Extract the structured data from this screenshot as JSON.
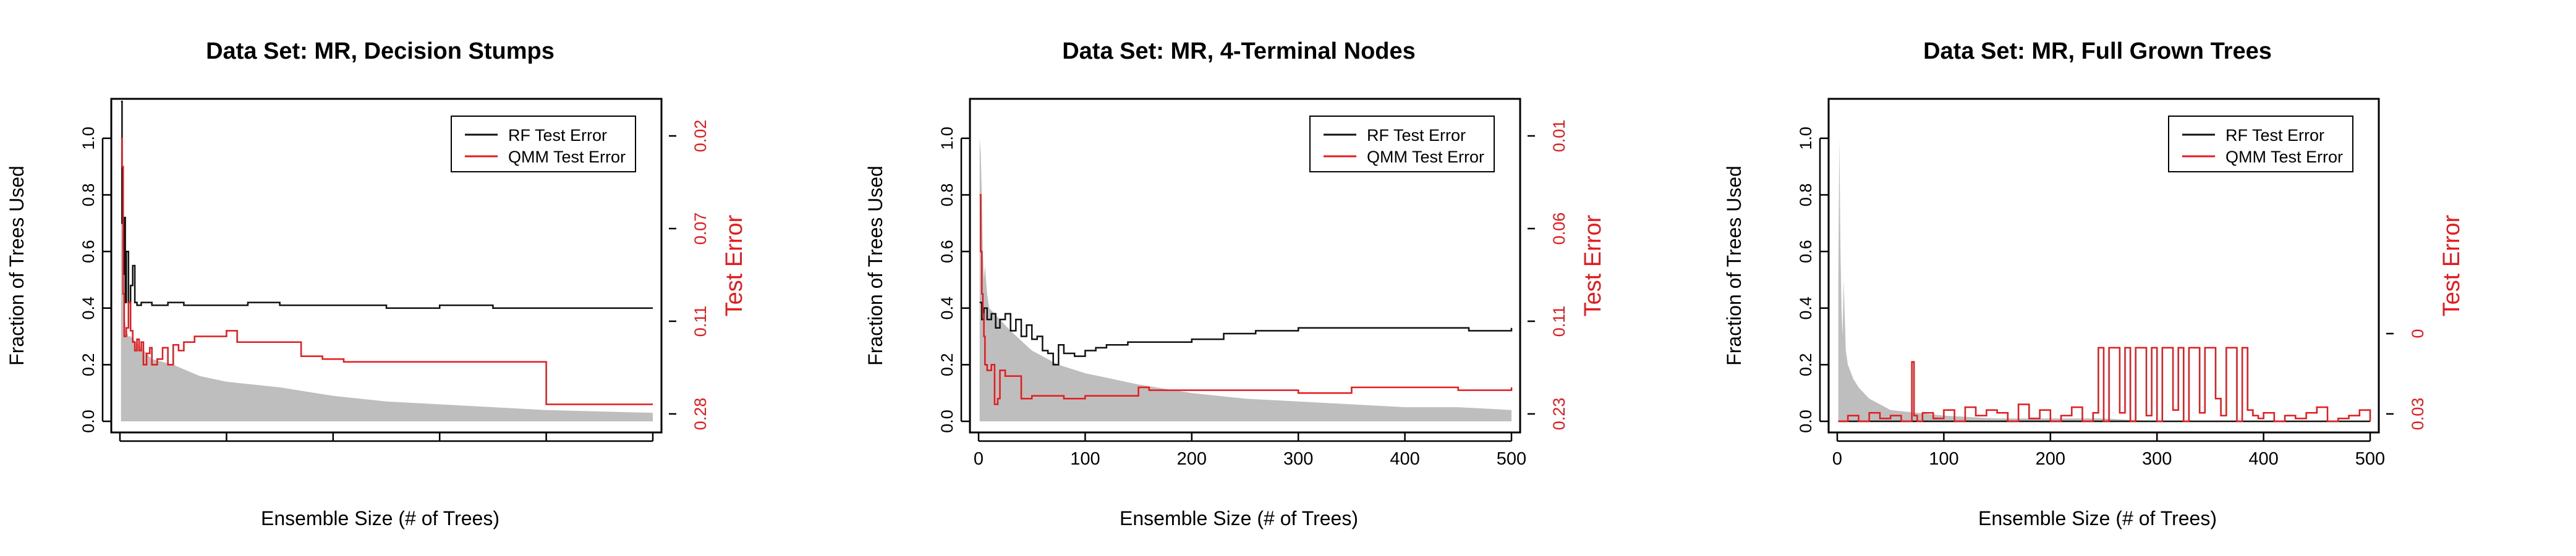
{
  "colors": {
    "rf": "#111111",
    "qmm": "#e41a1c",
    "fraction_fill": "#bebebe",
    "axis": "#000000"
  },
  "chart_data": [
    {
      "type": "line",
      "title": "Data Set: MR, Decision Stumps",
      "xlabel": "Ensemble Size (# of Trees)",
      "ylabel": "Fraction of Trees Used",
      "y2label": "Test Error",
      "x_ticks": [
        "",
        "",
        "",
        "",
        "",
        ""
      ],
      "y_ticks": [
        "0.0",
        "0.2",
        "0.4",
        "0.6",
        "0.8",
        "1.0"
      ],
      "y2_ticks": [
        "0.02",
        "0.07",
        "0.11",
        "0.28"
      ],
      "xlim": [
        0,
        500
      ],
      "ylim": [
        0,
        1.1
      ],
      "legend": {
        "position": "top-right",
        "entries": [
          "RF Test Error",
          "QMM Test Error"
        ]
      },
      "series": [
        {
          "name": "RF Test Error",
          "role": "rf",
          "x": [
            1,
            2,
            3,
            4,
            5,
            6,
            8,
            10,
            12,
            14,
            16,
            20,
            30,
            45,
            60,
            80,
            100,
            120,
            150,
            200,
            250,
            300,
            350,
            400,
            450,
            500
          ],
          "values": [
            1.13,
            0.7,
            0.52,
            0.72,
            0.42,
            0.6,
            0.42,
            0.48,
            0.55,
            0.42,
            0.41,
            0.42,
            0.41,
            0.42,
            0.41,
            0.41,
            0.41,
            0.42,
            0.41,
            0.41,
            0.4,
            0.41,
            0.4,
            0.4,
            0.4,
            0.4
          ]
        },
        {
          "name": "QMM Test Error",
          "role": "qmm",
          "x": [
            1,
            2,
            3,
            4,
            5,
            6,
            8,
            10,
            12,
            14,
            16,
            18,
            20,
            22,
            25,
            28,
            30,
            35,
            40,
            45,
            50,
            55,
            60,
            70,
            80,
            90,
            100,
            110,
            130,
            150,
            170,
            190,
            200,
            210,
            250,
            300,
            350,
            400,
            450,
            500
          ],
          "values": [
            1.0,
            0.9,
            0.45,
            0.3,
            0.3,
            0.33,
            0.42,
            0.32,
            0.28,
            0.25,
            0.29,
            0.25,
            0.28,
            0.2,
            0.24,
            0.26,
            0.2,
            0.22,
            0.26,
            0.2,
            0.27,
            0.25,
            0.28,
            0.3,
            0.3,
            0.3,
            0.32,
            0.28,
            0.28,
            0.28,
            0.23,
            0.22,
            0.22,
            0.21,
            0.21,
            0.21,
            0.21,
            0.06,
            0.06,
            0.06
          ]
        }
      ],
      "fraction_used": {
        "x": [
          1,
          2,
          3,
          4,
          5,
          6,
          8,
          10,
          15,
          20,
          30,
          50,
          75,
          100,
          150,
          200,
          250,
          300,
          350,
          400,
          450,
          500
        ],
        "values": [
          1.0,
          0.7,
          0.5,
          0.4,
          0.35,
          0.32,
          0.3,
          0.3,
          0.28,
          0.26,
          0.22,
          0.2,
          0.16,
          0.14,
          0.12,
          0.09,
          0.07,
          0.06,
          0.05,
          0.04,
          0.035,
          0.03
        ]
      }
    },
    {
      "type": "line",
      "title": "Data Set: MR, 4-Terminal Nodes",
      "xlabel": "Ensemble Size (# of Trees)",
      "ylabel": "Fraction of Trees Used",
      "y2label": "Test Error",
      "x_ticks": [
        "0",
        "100",
        "200",
        "300",
        "400",
        "500"
      ],
      "y_ticks": [
        "0.0",
        "0.2",
        "0.4",
        "0.6",
        "0.8",
        "1.0"
      ],
      "y2_ticks": [
        "0.01",
        "0.06",
        "0.11",
        "0.23"
      ],
      "xlim": [
        0,
        500
      ],
      "ylim": [
        0,
        1.1
      ],
      "legend": {
        "position": "top-right",
        "entries": [
          "RF Test Error",
          "QMM Test Error"
        ]
      },
      "series": [
        {
          "name": "RF Test Error",
          "role": "rf",
          "x": [
            1,
            3,
            5,
            8,
            12,
            16,
            20,
            25,
            30,
            35,
            40,
            45,
            50,
            55,
            60,
            65,
            70,
            75,
            80,
            90,
            100,
            110,
            120,
            140,
            160,
            180,
            200,
            230,
            260,
            300,
            340,
            380,
            420,
            460,
            500
          ],
          "values": [
            0.42,
            0.36,
            0.4,
            0.36,
            0.38,
            0.33,
            0.36,
            0.38,
            0.32,
            0.36,
            0.3,
            0.34,
            0.29,
            0.3,
            0.25,
            0.24,
            0.2,
            0.27,
            0.24,
            0.23,
            0.25,
            0.26,
            0.27,
            0.28,
            0.28,
            0.28,
            0.29,
            0.31,
            0.32,
            0.33,
            0.33,
            0.33,
            0.33,
            0.32,
            0.33
          ]
        },
        {
          "name": "QMM Test Error",
          "role": "qmm",
          "x": [
            1,
            2,
            3,
            4,
            5,
            6,
            8,
            10,
            12,
            15,
            18,
            20,
            25,
            30,
            40,
            50,
            60,
            80,
            100,
            120,
            150,
            160,
            200,
            250,
            300,
            350,
            400,
            450,
            500
          ],
          "values": [
            0.8,
            0.6,
            0.45,
            0.38,
            0.3,
            0.2,
            0.18,
            0.18,
            0.2,
            0.06,
            0.08,
            0.18,
            0.16,
            0.16,
            0.08,
            0.09,
            0.09,
            0.08,
            0.09,
            0.09,
            0.12,
            0.11,
            0.11,
            0.11,
            0.1,
            0.12,
            0.12,
            0.11,
            0.12
          ]
        }
      ],
      "fraction_used": {
        "x": [
          1,
          2,
          3,
          4,
          5,
          6,
          8,
          10,
          15,
          20,
          30,
          50,
          75,
          100,
          150,
          200,
          250,
          300,
          350,
          400,
          450,
          500
        ],
        "values": [
          1.0,
          0.95,
          0.8,
          0.6,
          0.5,
          0.55,
          0.45,
          0.4,
          0.38,
          0.36,
          0.32,
          0.25,
          0.2,
          0.17,
          0.13,
          0.1,
          0.08,
          0.07,
          0.06,
          0.05,
          0.05,
          0.04
        ]
      }
    },
    {
      "type": "line",
      "title": "Data Set: MR, Full Grown Trees",
      "xlabel": "Ensemble Size (# of Trees)",
      "ylabel": "Fraction of Trees Used",
      "y2label": "Test Error",
      "x_ticks": [
        "0",
        "100",
        "200",
        "300",
        "400",
        "500"
      ],
      "y_ticks": [
        "0.0",
        "0.2",
        "0.4",
        "0.6",
        "0.8",
        "1.0"
      ],
      "y2_ticks": [
        "0",
        "0.03"
      ],
      "xlim": [
        0,
        500
      ],
      "ylim": [
        0,
        1.1
      ],
      "legend": {
        "position": "top-right",
        "entries": [
          "RF Test Error",
          "QMM Test Error"
        ]
      },
      "series": [
        {
          "name": "RF Test Error",
          "role": "rf",
          "x": [
            1,
            500
          ],
          "values": [
            0.0,
            0.0
          ]
        },
        {
          "name": "QMM Test Error",
          "role": "qmm",
          "x": [
            1,
            10,
            20,
            30,
            40,
            50,
            60,
            70,
            72,
            75,
            80,
            90,
            100,
            110,
            120,
            130,
            140,
            150,
            160,
            170,
            180,
            190,
            200,
            210,
            220,
            230,
            240,
            245,
            250,
            255,
            260,
            265,
            270,
            275,
            280,
            285,
            290,
            295,
            300,
            305,
            310,
            315,
            320,
            325,
            330,
            335,
            340,
            345,
            350,
            355,
            360,
            365,
            370,
            375,
            380,
            385,
            390,
            395,
            400,
            410,
            420,
            430,
            440,
            450,
            460,
            470,
            480,
            490,
            500
          ],
          "values": [
            0.0,
            0.02,
            0.0,
            0.03,
            0.01,
            0.02,
            0.0,
            0.21,
            0.02,
            0.0,
            0.03,
            0.01,
            0.04,
            0.0,
            0.05,
            0.02,
            0.04,
            0.03,
            0.0,
            0.06,
            0.01,
            0.04,
            0.0,
            0.02,
            0.05,
            0.0,
            0.03,
            0.26,
            0.0,
            0.26,
            0.26,
            0.03,
            0.26,
            0.0,
            0.26,
            0.26,
            0.02,
            0.26,
            0.0,
            0.26,
            0.26,
            0.04,
            0.26,
            0.0,
            0.26,
            0.26,
            0.03,
            0.26,
            0.26,
            0.08,
            0.02,
            0.26,
            0.26,
            0.0,
            0.26,
            0.04,
            0.02,
            0.01,
            0.03,
            0.0,
            0.02,
            0.01,
            0.03,
            0.05,
            0.0,
            0.01,
            0.02,
            0.04,
            0.0
          ]
        }
      ],
      "fraction_used": {
        "x": [
          1,
          2,
          3,
          4,
          5,
          6,
          8,
          10,
          15,
          20,
          30,
          50,
          75,
          100,
          150,
          200,
          250,
          300,
          350,
          400,
          450,
          500
        ],
        "values": [
          0.5,
          1.0,
          0.6,
          0.4,
          0.3,
          0.5,
          0.25,
          0.2,
          0.15,
          0.12,
          0.08,
          0.04,
          0.03,
          0.02,
          0.01,
          0.01,
          0.01,
          0.0,
          0.0,
          0.0,
          0.0,
          0.0
        ]
      }
    }
  ]
}
